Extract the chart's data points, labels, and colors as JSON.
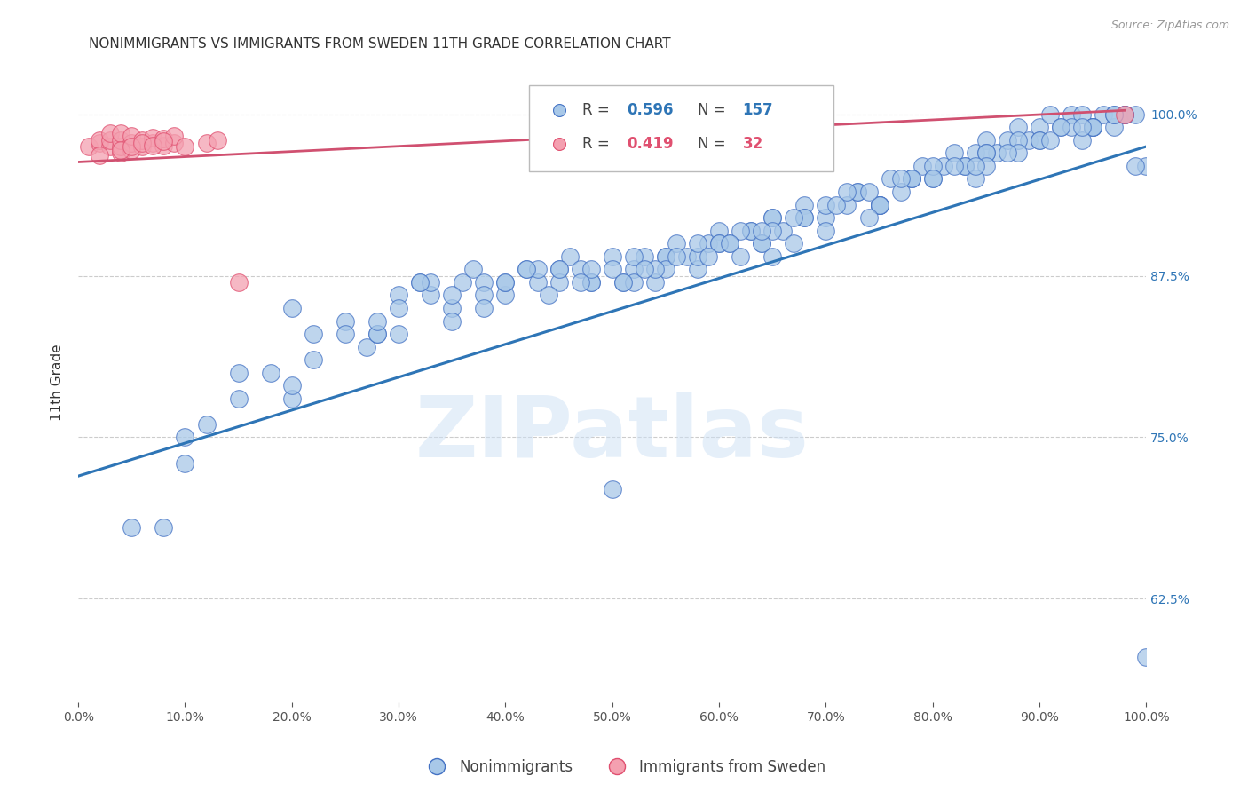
{
  "title": "NONIMMIGRANTS VS IMMIGRANTS FROM SWEDEN 11TH GRADE CORRELATION CHART",
  "source": "Source: ZipAtlas.com",
  "ylabel": "11th Grade",
  "blue_R": 0.596,
  "blue_N": 157,
  "pink_R": 0.419,
  "pink_N": 32,
  "blue_color": "#a8c8e8",
  "pink_color": "#f4a0b0",
  "blue_edge_color": "#4472c4",
  "pink_edge_color": "#e05070",
  "blue_line_color": "#2e75b6",
  "pink_line_color": "#d05070",
  "legend_blue_label": "Nonimmigrants",
  "legend_pink_label": "Immigrants from Sweden",
  "watermark": "ZIPatlas",
  "ytick_labels": [
    "62.5%",
    "75.0%",
    "87.5%",
    "100.0%"
  ],
  "ytick_values": [
    0.625,
    0.75,
    0.875,
    1.0
  ],
  "xlim": [
    0.0,
    1.0
  ],
  "ylim": [
    0.545,
    1.04
  ],
  "background_color": "#ffffff",
  "blue_scatter_x": [
    0.05,
    0.1,
    0.15,
    0.2,
    0.22,
    0.25,
    0.27,
    0.28,
    0.3,
    0.32,
    0.33,
    0.35,
    0.36,
    0.37,
    0.38,
    0.4,
    0.42,
    0.43,
    0.45,
    0.46,
    0.47,
    0.48,
    0.5,
    0.51,
    0.52,
    0.53,
    0.54,
    0.55,
    0.56,
    0.57,
    0.58,
    0.59,
    0.6,
    0.61,
    0.62,
    0.63,
    0.64,
    0.65,
    0.66,
    0.67,
    0.68,
    0.7,
    0.72,
    0.73,
    0.75,
    0.76,
    0.77,
    0.78,
    0.79,
    0.8,
    0.81,
    0.82,
    0.83,
    0.84,
    0.85,
    0.86,
    0.87,
    0.88,
    0.89,
    0.9,
    0.91,
    0.92,
    0.93,
    0.94,
    0.95,
    0.96,
    0.97,
    0.98,
    0.99,
    1.0,
    0.2,
    0.28,
    0.3,
    0.33,
    0.35,
    0.38,
    0.4,
    0.43,
    0.45,
    0.48,
    0.5,
    0.52,
    0.55,
    0.58,
    0.6,
    0.63,
    0.65,
    0.68,
    0.7,
    0.73,
    0.75,
    0.78,
    0.8,
    0.83,
    0.85,
    0.88,
    0.9,
    0.93,
    0.95,
    0.98,
    0.15,
    0.25,
    0.35,
    0.45,
    0.55,
    0.65,
    0.75,
    0.85,
    0.95,
    0.12,
    0.22,
    0.32,
    0.42,
    0.52,
    0.62,
    0.72,
    0.82,
    0.92,
    0.18,
    0.28,
    0.38,
    0.48,
    0.58,
    0.68,
    0.78,
    0.88,
    0.98,
    0.08,
    0.5,
    0.6,
    0.65,
    0.7,
    0.75,
    0.8,
    0.85,
    0.9,
    0.95,
    0.97,
    0.1,
    0.2,
    0.3,
    0.4,
    0.44,
    0.47,
    0.54,
    0.64,
    0.74,
    0.84,
    0.94,
    0.51,
    0.53,
    0.56,
    0.59,
    0.61,
    0.64,
    0.67,
    0.71,
    0.74,
    0.77,
    0.84,
    0.87,
    0.91,
    0.94,
    0.97,
    0.99,
    1.0
  ],
  "blue_scatter_y": [
    0.68,
    0.73,
    0.8,
    0.85,
    0.83,
    0.84,
    0.82,
    0.83,
    0.86,
    0.87,
    0.86,
    0.85,
    0.87,
    0.88,
    0.87,
    0.86,
    0.88,
    0.87,
    0.88,
    0.89,
    0.88,
    0.87,
    0.89,
    0.87,
    0.88,
    0.89,
    0.87,
    0.89,
    0.9,
    0.89,
    0.88,
    0.9,
    0.91,
    0.9,
    0.89,
    0.91,
    0.9,
    0.92,
    0.91,
    0.9,
    0.93,
    0.92,
    0.93,
    0.94,
    0.93,
    0.95,
    0.94,
    0.95,
    0.96,
    0.95,
    0.96,
    0.97,
    0.96,
    0.97,
    0.98,
    0.97,
    0.98,
    0.99,
    0.98,
    0.99,
    1.0,
    0.99,
    1.0,
    1.0,
    0.99,
    1.0,
    0.99,
    1.0,
    1.0,
    0.96,
    0.78,
    0.83,
    0.85,
    0.87,
    0.86,
    0.86,
    0.87,
    0.88,
    0.87,
    0.87,
    0.88,
    0.89,
    0.89,
    0.89,
    0.9,
    0.91,
    0.92,
    0.92,
    0.93,
    0.94,
    0.93,
    0.95,
    0.96,
    0.96,
    0.97,
    0.98,
    0.98,
    0.99,
    0.99,
    1.0,
    0.78,
    0.83,
    0.84,
    0.88,
    0.88,
    0.91,
    0.93,
    0.97,
    0.99,
    0.76,
    0.81,
    0.87,
    0.88,
    0.87,
    0.91,
    0.94,
    0.96,
    0.99,
    0.8,
    0.84,
    0.85,
    0.88,
    0.9,
    0.92,
    0.95,
    0.97,
    1.0,
    0.68,
    0.71,
    0.9,
    0.89,
    0.91,
    0.93,
    0.95,
    0.96,
    0.98,
    0.99,
    1.0,
    0.75,
    0.79,
    0.83,
    0.87,
    0.86,
    0.87,
    0.88,
    0.9,
    0.92,
    0.95,
    0.98,
    0.87,
    0.88,
    0.89,
    0.89,
    0.9,
    0.91,
    0.92,
    0.93,
    0.94,
    0.95,
    0.96,
    0.97,
    0.98,
    0.99,
    1.0,
    0.96,
    0.58
  ],
  "pink_scatter_x": [
    0.01,
    0.02,
    0.02,
    0.03,
    0.03,
    0.03,
    0.04,
    0.04,
    0.04,
    0.04,
    0.05,
    0.05,
    0.05,
    0.06,
    0.06,
    0.07,
    0.07,
    0.08,
    0.08,
    0.09,
    0.09,
    0.02,
    0.04,
    0.05,
    0.06,
    0.07,
    0.08,
    0.1,
    0.12,
    0.13,
    0.98,
    0.15
  ],
  "pink_scatter_y": [
    0.975,
    0.978,
    0.98,
    0.975,
    0.98,
    0.985,
    0.97,
    0.975,
    0.98,
    0.985,
    0.972,
    0.978,
    0.983,
    0.975,
    0.98,
    0.978,
    0.982,
    0.976,
    0.981,
    0.978,
    0.983,
    0.968,
    0.972,
    0.975,
    0.978,
    0.976,
    0.979,
    0.975,
    0.978,
    0.98,
    1.0,
    0.87
  ],
  "blue_trend_x": [
    0.0,
    1.0
  ],
  "blue_trend_y": [
    0.72,
    0.975
  ],
  "pink_trend_x": [
    0.0,
    0.98
  ],
  "pink_trend_y": [
    0.963,
    1.003
  ],
  "title_fontsize": 11,
  "source_fontsize": 9,
  "axis_label_fontsize": 11,
  "tick_fontsize": 10,
  "legend_fontsize": 12
}
